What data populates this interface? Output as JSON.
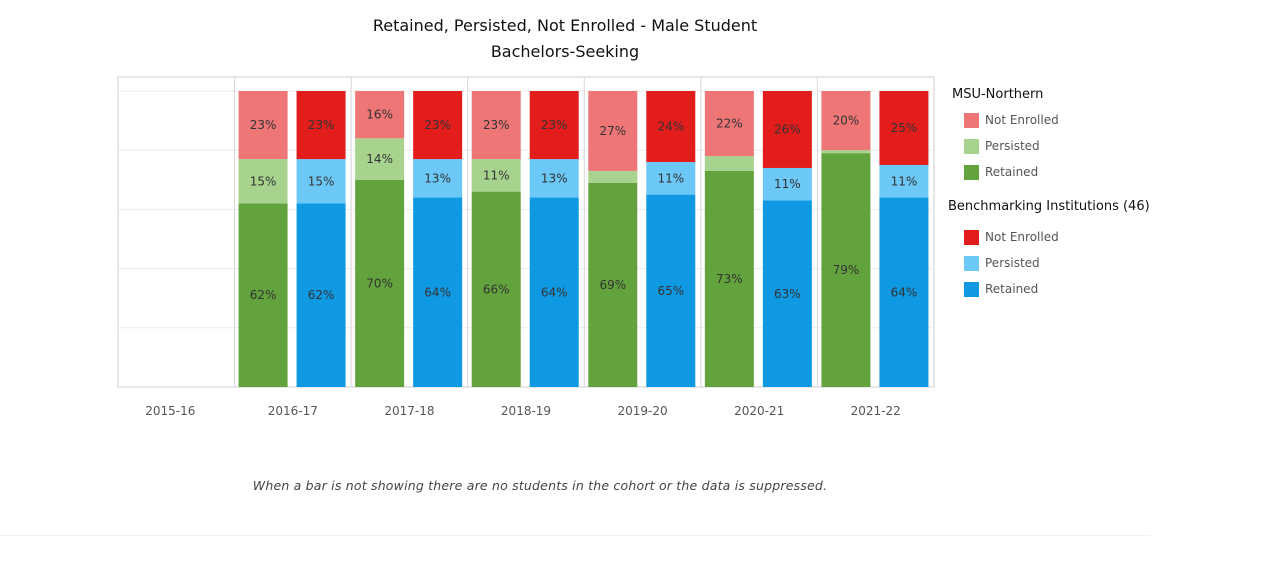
{
  "chart_data": {
    "type": "bar",
    "stacked": true,
    "title": "Retained, Persisted, Not Enrolled - Male Student",
    "subtitle": "Bachelors-Seeking",
    "categories": [
      "2015-16",
      "2016-17",
      "2017-18",
      "2018-19",
      "2019-20",
      "2020-21",
      "2021-22"
    ],
    "ylim": [
      0,
      100
    ],
    "groups": [
      {
        "name": "MSU-Northern",
        "series": [
          {
            "name": "Retained",
            "color": "#62a33d",
            "values": [
              null,
              62,
              70,
              66,
              69,
              73,
              79
            ]
          },
          {
            "name": "Persisted",
            "color": "#a8d38f",
            "values": [
              null,
              15,
              14,
              11,
              4,
              5,
              1
            ]
          },
          {
            "name": "Not Enrolled",
            "color": "#ee7676",
            "values": [
              null,
              23,
              16,
              23,
              27,
              22,
              20
            ]
          }
        ]
      },
      {
        "name": "Benchmarking Institutions (46)",
        "series": [
          {
            "name": "Retained",
            "color": "#0f99e3",
            "values": [
              null,
              62,
              64,
              64,
              65,
              63,
              64
            ]
          },
          {
            "name": "Persisted",
            "color": "#6bc8f7",
            "values": [
              null,
              15,
              13,
              13,
              11,
              11,
              11
            ]
          },
          {
            "name": "Not Enrolled",
            "color": "#e31c1c",
            "values": [
              null,
              23,
              23,
              23,
              24,
              26,
              25
            ]
          }
        ]
      }
    ],
    "data_labels_threshold": 6,
    "label_suffix": "%",
    "legend": "right",
    "gridlines": true
  },
  "legend": {
    "groups": [
      {
        "title": "MSU-Northern",
        "items": [
          {
            "label": "Not Enrolled",
            "color": "#ee7676"
          },
          {
            "label": "Persisted",
            "color": "#a8d38f"
          },
          {
            "label": "Retained",
            "color": "#62a33d"
          }
        ]
      },
      {
        "title": "Benchmarking Institutions (46)",
        "items": [
          {
            "label": "Not Enrolled",
            "color": "#e31c1c"
          },
          {
            "label": "Persisted",
            "color": "#6bc8f7"
          },
          {
            "label": "Retained",
            "color": "#0f99e3"
          }
        ]
      }
    ]
  },
  "footnote": "When a bar is not showing there are no students in the cohort or the data is suppressed."
}
